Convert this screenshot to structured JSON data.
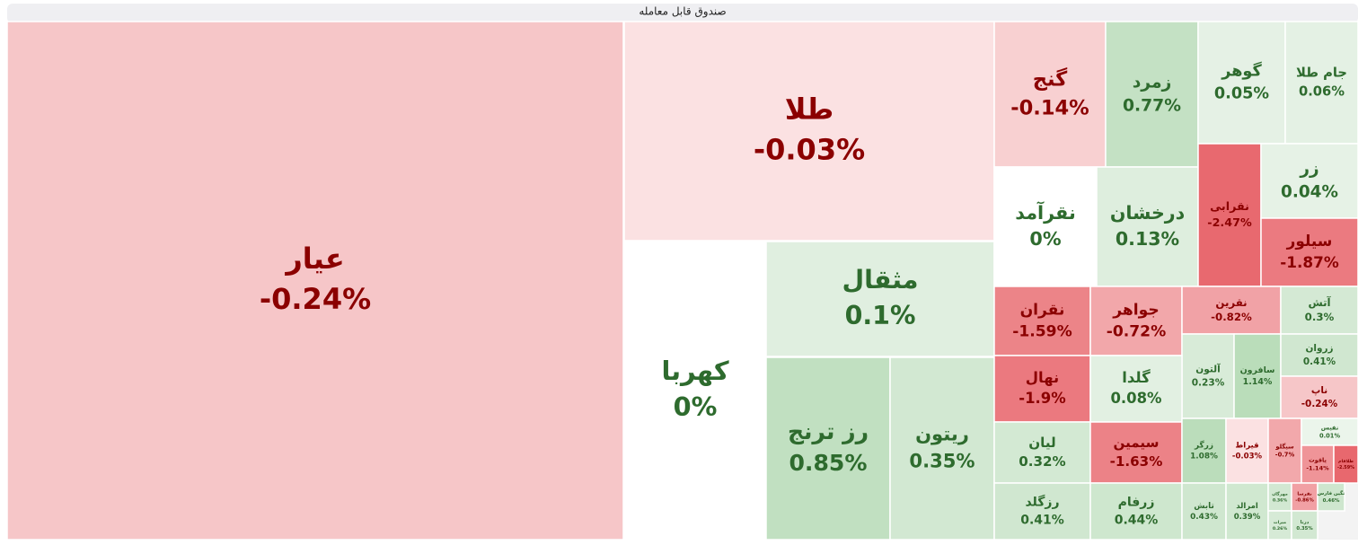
{
  "chart_data": {
    "type": "treemap",
    "title": "صندوق قابل معامله",
    "categories": [
      "عیار",
      "طلا",
      "کهربا",
      "مثقال",
      "رز ترنج",
      "ریتون",
      "گنج",
      "زمرد",
      "گوهر",
      "جام طلا",
      "نقرآمد",
      "درخشان",
      "نقرابی",
      "زر",
      "سیلور",
      "نقران",
      "جواهر",
      "نقرین",
      "آتش",
      "آلتون",
      "سافرون",
      "زروان",
      "ناپ",
      "نهال",
      "گلدا",
      "لیان",
      "سیمین",
      "رزگلد",
      "زرفام",
      "زرگر",
      "قیراط",
      "سیگلو",
      "نفیس",
      "یاقوت",
      "طلافام",
      "تابش",
      "امرالد",
      "مهرگان",
      "نقرسا",
      "نگین فارس",
      "میراث",
      "درنا"
    ],
    "values": [
      -0.24,
      -0.03,
      0,
      0.1,
      0.85,
      0.35,
      -0.14,
      0.77,
      0.05,
      0.06,
      0,
      0.13,
      -2.47,
      0.04,
      -1.87,
      -1.59,
      -0.72,
      -0.82,
      0.3,
      0.23,
      1.14,
      0.41,
      -0.24,
      -1.9,
      0.08,
      0.32,
      -1.63,
      0.41,
      0.44,
      1.08,
      -0.03,
      -0.7,
      0.01,
      -1.14,
      -2.59,
      0.43,
      0.39,
      0.36,
      -0.86,
      0.46,
      0.26,
      0.35
    ],
    "value_labels": [
      "-0.24%",
      "-0.03%",
      "0%",
      "0.1%",
      "0.85%",
      "0.35%",
      "-0.14%",
      "0.77%",
      "0.05%",
      "0.06%",
      "0%",
      "0.13%",
      "-2.47%",
      "0.04%",
      "-1.87%",
      "-1.59%",
      "-0.72%",
      "-0.82%",
      "0.3%",
      "0.23%",
      "1.14%",
      "0.41%",
      "-0.24%",
      "-1.9%",
      "0.08%",
      "0.32%",
      "-1.63%",
      "0.41%",
      "0.44%",
      "1.08%",
      "-0.03%",
      "-0.7%",
      "0.01%",
      "-1.14%",
      "-2.59%",
      "0.43%",
      "0.39%",
      "0.36%",
      "-0.86%",
      "0.46%",
      "0.26%",
      "0.35%"
    ]
  }
}
